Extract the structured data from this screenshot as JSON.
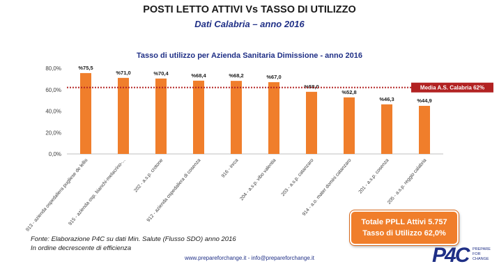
{
  "header": {
    "title": "POSTI LETTO ATTIVI Vs TASSO DI UTILIZZO",
    "subtitle": "Dati Calabria – anno 2016"
  },
  "chart_data": {
    "type": "bar",
    "title": "Tasso di utilizzo per Azienda Sanitaria Dimissione - anno 2016",
    "categories": [
      "913 - azienda ospedaliera pugliese de lellis",
      "915 - azienda osp. bianchi-melacrino-...",
      "202 - a.s.p. crotone",
      "912 - azienda ospedaliera di cosenza",
      "916 - inrca",
      "204 - a.s.p. vibo valentia",
      "203 - a.s.p. catanzaro",
      "914 - a.o. mater domini catanzaro",
      "201 - a.s.p. cosenza",
      "205 - a.s.p. reggio calabria"
    ],
    "values": [
      75.5,
      71.0,
      70.4,
      68.4,
      68.2,
      67.0,
      58.0,
      52.8,
      46.3,
      44.9
    ],
    "data_labels": [
      "%75,5",
      "%71,0",
      "%70,4",
      "%68,4",
      "%68,2",
      "%67,0",
      "%58,0",
      "%52,8",
      "%46,3",
      "%44,9"
    ],
    "y_ticks": [
      "0,0%",
      "20,0%",
      "40,0%",
      "60,0%",
      "80,0%"
    ],
    "y_tick_values": [
      0,
      20,
      40,
      60,
      80
    ],
    "ylim": [
      0,
      80
    ],
    "reference_line": {
      "value": 62,
      "label": "Media  A.S. Calabria 62%",
      "color": "#b22222"
    },
    "bar_color": "#f07e2b",
    "grid": false
  },
  "summary": {
    "line1": "Totale PPLL Attivi 5.757",
    "line2": "Tasso di Utilizzo 62,0%"
  },
  "notes": {
    "line1": "Fonte: Elaborazione P4C su dati Min. Salute (Flusso SDO) anno 2016",
    "line2": "In ordine decrescente di efficienza"
  },
  "footer": {
    "links": "www.prepareforchange.it - info@prepareforchange.it"
  },
  "logo": {
    "main": "P4C",
    "side1": "PREPARE",
    "side2": "FOR",
    "side3": "CHANGE"
  }
}
